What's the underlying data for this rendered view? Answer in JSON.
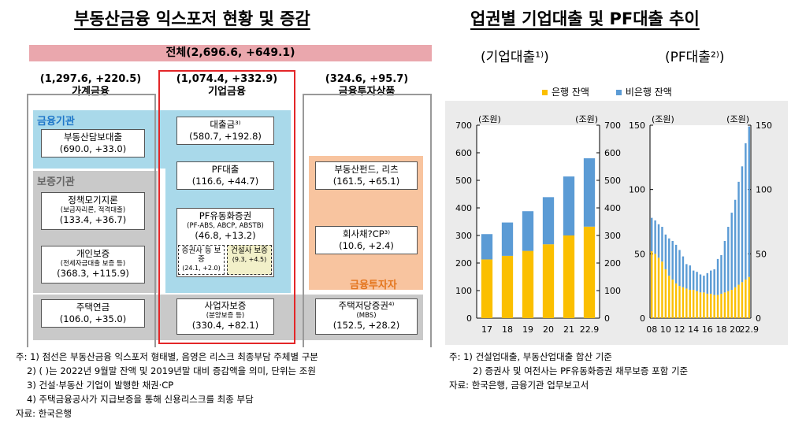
{
  "left": {
    "title": "부동산금융 익스포저 현황 및 증감",
    "total": "전체(2,696.6, +649.1)",
    "household": {
      "amount": "(1,297.6, +220.5)",
      "label": "가계금융"
    },
    "corporate": {
      "amount": "(1,074.4, +332.9)",
      "label": "기업금융"
    },
    "investment": {
      "amount": "(324.6, +95.7)",
      "label": "금융투자상품"
    },
    "region_fin_inst": "금융기관",
    "region_guarantee": "보증기관",
    "region_fin_invest": "금융투자자",
    "boxes": {
      "mortgage": {
        "name": "부동산담보대출",
        "value": "(690.0, +33.0)"
      },
      "policy_mortgage": {
        "name": "정책모기지론",
        "sub": "(보금자리론, 적격대출)",
        "value": "(133.4, +36.7)"
      },
      "personal_guarantee": {
        "name": "개인보증",
        "sub": "(전세자금대출 보증 등)",
        "value": "(368.3, +115.9)"
      },
      "reverse_mortgage": {
        "name": "주택연금",
        "value": "(106.0, +35.0)"
      },
      "loans": {
        "name": "대출금³⁾",
        "value": "(580.7, +192.8)"
      },
      "pf_loans": {
        "name": "PF대출",
        "value": "(116.6, +44.7)"
      },
      "pf_securities": {
        "name": "PF유동화증권",
        "sub": "(PF-ABS, ABCP, ABSTB)",
        "value": "(46.8, +13.2)"
      },
      "sec_guarantee": {
        "name": "증권사 등 보증",
        "value": "(24.1, +2.0)"
      },
      "constr_guarantee": {
        "name": "건설사 보증",
        "value": "(9.3, +4.5)"
      },
      "business_guarantee": {
        "name": "사업자보증",
        "sub": "(분양보증 등)",
        "value": "(330.4, +82.1)"
      },
      "re_funds": {
        "name": "부동산펀드, 리츠",
        "value": "(161.5, +65.1)"
      },
      "corp_bonds": {
        "name": "회사채?CP³⁾",
        "value": "(10.6, +2.4)"
      },
      "mbs": {
        "name": "주택저당증권⁴⁾",
        "sub": "(MBS)",
        "value": "(152.5, +28.2)"
      }
    },
    "notes": [
      "주: 1) 점선은 부동산금융 익스포저 형태별, 음영은 리스크 최종부담 주체별 구분",
      "2) ( )는 2022년 9월말 잔액 및 2019년말 대비 증감액을 의미, 단위는 조원",
      "3) 건설·부동산 기업이 발행한 채권·CP",
      "4) 주택금융공사가 지급보증을 통해 신용리스크를 최종 부담",
      "자료: 한국은행"
    ]
  },
  "right": {
    "title": "업권별 기업대출 및 PF대출 추이",
    "legend": {
      "bank": "은행 잔액",
      "nonbank": "비은행 잔액"
    },
    "colors": {
      "bank": "#fbbf00",
      "nonbank": "#5b9bd5"
    },
    "notes": [
      "주: 1) 건설업대출, 부동산업대출 합산 기준",
      "2) 증권사 및 여전사는 PF유동화증권 채무보증 포함 기준",
      "자료: 한국은행, 금융기관 업무보고서"
    ]
  },
  "chart_data": [
    {
      "type": "bar",
      "stacked": true,
      "title": "(기업대출¹⁾)",
      "ylabel_left": "(조원)",
      "ylabel_right": "(조원)",
      "categories": [
        "17",
        "18",
        "19",
        "20",
        "21",
        "22.9"
      ],
      "series": [
        {
          "name": "은행 잔액",
          "values": [
            213,
            226,
            244,
            268,
            300,
            332
          ]
        },
        {
          "name": "비은행 잔액",
          "values": [
            92,
            121,
            144,
            171,
            214,
            248
          ]
        }
      ],
      "ylim": [
        0,
        700
      ],
      "yticks": [
        0,
        100,
        200,
        300,
        400,
        500,
        600,
        700
      ]
    },
    {
      "type": "bar",
      "stacked": true,
      "title": "(PF대출²⁾)",
      "ylabel_left": "(조원)",
      "ylabel_right": "(조원)",
      "x_tick_labels": [
        "08",
        "10",
        "12",
        "14",
        "16",
        "18",
        "20",
        "22.9"
      ],
      "categories": [
        "08.1",
        "08.2",
        "09.1",
        "09.2",
        "10.1",
        "10.2",
        "11.1",
        "11.2",
        "12.1",
        "12.2",
        "13.1",
        "13.2",
        "14.1",
        "14.2",
        "15.1",
        "15.2",
        "16.1",
        "16.2",
        "17.1",
        "17.2",
        "18.1",
        "18.2",
        "19.1",
        "19.2",
        "20.1",
        "20.2",
        "21.1",
        "21.2",
        "22.9"
      ],
      "series": [
        {
          "name": "은행 잔액",
          "values": [
            52,
            50,
            47,
            44,
            38,
            33,
            30,
            27,
            25,
            24,
            23,
            22,
            22,
            21,
            20,
            20,
            19,
            19,
            18,
            18,
            19,
            20,
            21,
            22,
            24,
            26,
            28,
            30,
            32
          ]
        },
        {
          "name": "비은행 잔액",
          "values": [
            26,
            26,
            26,
            27,
            27,
            29,
            30,
            30,
            28,
            24,
            19,
            19,
            15,
            15,
            14,
            13,
            16,
            18,
            20,
            28,
            30,
            40,
            50,
            60,
            68,
            80,
            90,
            106,
            117
          ]
        }
      ],
      "ylim": [
        0,
        150
      ],
      "yticks": [
        0,
        50,
        100,
        150
      ]
    }
  ]
}
